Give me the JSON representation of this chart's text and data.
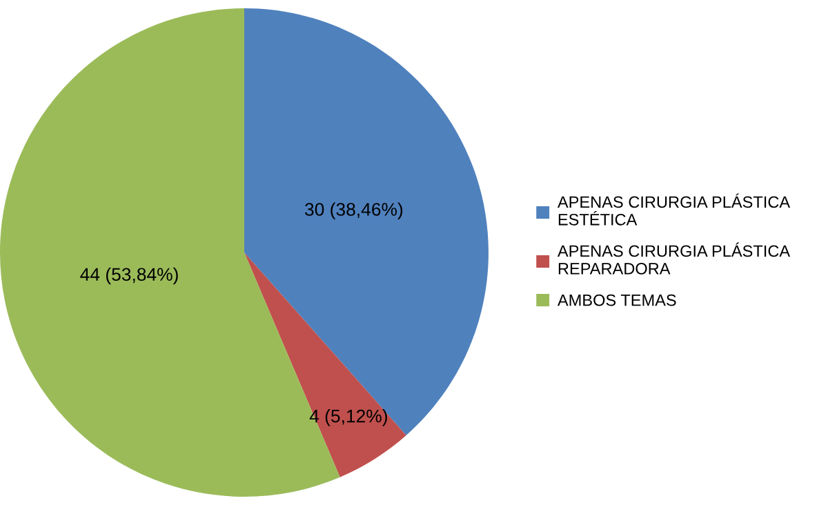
{
  "chart_data": {
    "type": "pie",
    "categories": [
      "APENAS CIRURGIA PLÁSTICA ESTÉTICA",
      "APENAS CIRURGIA PLÁSTICA REPARADORA",
      "AMBOS TEMAS"
    ],
    "values": [
      30,
      4,
      44
    ],
    "value_labels": [
      "30 (38,46%)",
      "4 (5,12%)",
      "44 (53,84%)"
    ],
    "colors": [
      "#4f81bd",
      "#c0504d",
      "#9bbb59"
    ],
    "legend": "right"
  }
}
